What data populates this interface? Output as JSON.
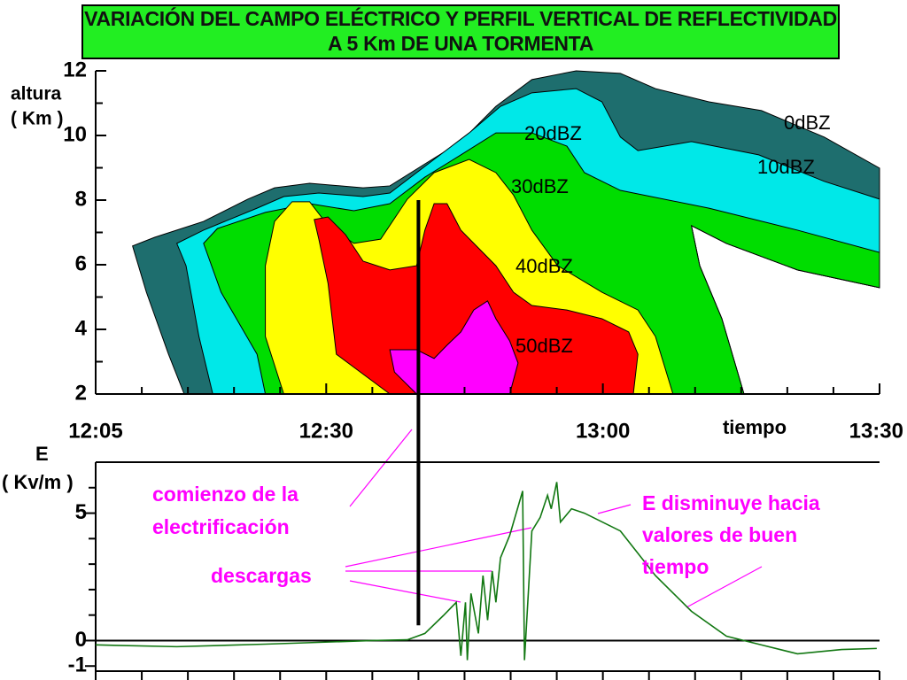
{
  "title": "VARIACIÓN DEL CAMPO ELÉCTRICO Y PERFIL VERTICAL DE REFLECTIVIDAD A 5 Km DE UNA TORMENTA",
  "electrification_start": 40,
  "chart_data": [
    {
      "type": "contour",
      "y_label": [
        "altura",
        "( Km )"
      ],
      "x_label": "tiempo",
      "xlim": [
        5,
        90
      ],
      "xticks": [
        {
          "value": 5,
          "label": "12:05"
        },
        {
          "value": 30,
          "label": "12:30"
        },
        {
          "value": 60,
          "label": "13:00"
        },
        {
          "value": 90,
          "label": "13:30"
        }
      ],
      "minor_xticks": [
        10,
        15,
        20,
        25,
        35,
        40,
        45,
        50,
        55,
        65,
        70,
        75,
        80,
        85
      ],
      "ylim": [
        2,
        12
      ],
      "yticks": [
        2,
        4,
        6,
        8,
        10,
        12
      ],
      "minor_yticks": [
        3,
        5,
        7,
        9,
        11
      ],
      "levels": [
        {
          "name": "0dBZ",
          "color": "#1e6e6e",
          "x": [
            14.6,
            12.9,
            10.5,
            9.0,
            11.4,
            16.7,
            21.5,
            24.4,
            28.2,
            34.0,
            36.9,
            40.7,
            44.6,
            48.4,
            52.3,
            57.1,
            61.9,
            65.7,
            71.5,
            77.2,
            84.0,
            90,
            90,
            81.1,
            73.4,
            69.6,
            70.5,
            72.9,
            75.3
          ],
          "y": [
            2,
            3.23,
            5.15,
            6.58,
            6.85,
            7.34,
            8.03,
            8.38,
            8.52,
            8.38,
            8.44,
            9.12,
            9.81,
            10.9,
            11.73,
            12,
            11.92,
            11.45,
            11.04,
            10.77,
            9.95,
            8.99,
            5.29,
            5.84,
            6.66,
            7.21,
            5.97,
            4.33,
            2
          ]
        },
        {
          "name": "10dBZ",
          "color": "#00e8e8",
          "x": [
            17.7,
            16.2,
            14.8,
            13.8,
            16.7,
            22.5,
            25.4,
            29.2,
            34.0,
            36.9,
            41.7,
            45.5,
            48.9,
            52.3,
            57.1,
            59.9,
            61.9,
            63.8,
            69.6,
            76.9,
            84.0,
            90,
            90,
            81.1,
            73.4,
            69.6,
            70.5,
            72.9,
            75.3
          ],
          "y": [
            2,
            3.78,
            5.97,
            6.66,
            7.07,
            7.75,
            8.11,
            8.22,
            8.11,
            8.22,
            9.26,
            10.08,
            10.9,
            11.32,
            11.45,
            11.04,
            9.95,
            9.53,
            9.81,
            9.4,
            8.58,
            8.03,
            5.29,
            5.84,
            6.66,
            7.21,
            5.97,
            4.33,
            2
          ]
        },
        {
          "name": "20dBZ",
          "color": "#00dd00",
          "x": [
            23.4,
            22.5,
            18.6,
            16.7,
            18.2,
            23.4,
            28.2,
            33.0,
            36.9,
            40.7,
            44.6,
            48.4,
            52.3,
            56.1,
            58.0,
            61.9,
            71.5,
            81.1,
            90,
            90,
            81.1,
            73.4,
            69.6,
            70.5,
            72.9,
            75.3
          ],
          "y": [
            2,
            3.23,
            5.15,
            6.66,
            7.12,
            7.62,
            7.89,
            7.67,
            7.89,
            8.71,
            9.4,
            10.08,
            10.08,
            9.67,
            8.85,
            8.3,
            7.75,
            7.07,
            6.38,
            5.29,
            5.84,
            6.66,
            7.21,
            5.97,
            4.33,
            2
          ]
        },
        {
          "name": "30dBZ",
          "color": "#ffff00",
          "x": [
            25.4,
            23.4,
            23.4,
            24.4,
            26.3,
            28.2,
            30.2,
            33.0,
            35.9,
            38.8,
            41.7,
            45.5,
            48.4,
            50.3,
            52.3,
            55.1,
            59.9,
            63.8,
            65.7,
            67.6
          ],
          "y": [
            2,
            3.78,
            5.97,
            7.34,
            7.95,
            7.95,
            7.21,
            6.66,
            6.79,
            8.03,
            8.85,
            9.26,
            8.85,
            8.16,
            7.07,
            5.97,
            5.15,
            4.6,
            3.78,
            2
          ]
        },
        {
          "name": "40dBZ",
          "color": "#ff0000",
          "x": [
            36.9,
            31.1,
            30.2,
            29.2,
            28.7,
            30.2,
            32.1,
            34.0,
            36.9,
            39.8,
            40.7,
            41.7,
            43.1,
            44.6,
            48.4,
            50.3,
            52.3,
            56.1,
            59.9,
            62.8,
            63.8,
            63.3
          ],
          "y": [
            2,
            3.23,
            5.42,
            6.79,
            7.4,
            7.48,
            6.93,
            6.11,
            5.84,
            5.97,
            7.07,
            7.89,
            7.89,
            7.07,
            5.97,
            5.15,
            4.74,
            4.6,
            4.33,
            3.92,
            3.23,
            2
          ]
        },
        {
          "name": "50dBZ",
          "color": "#ff00ff",
          "x": [
            39.8,
            37.4,
            36.9,
            39.8,
            41.7,
            43.1,
            44.6,
            46.0,
            47.5,
            48.4,
            49.9,
            50.8,
            49.9
          ],
          "y": [
            2,
            2.68,
            3.37,
            3.37,
            3.1,
            3.51,
            3.92,
            4.6,
            4.88,
            4.33,
            3.64,
            2.96,
            2
          ]
        }
      ]
    },
    {
      "type": "line",
      "y_label": [
        "E",
        "( Kv/m )"
      ],
      "xlim": [
        5,
        90
      ],
      "xtick_marks": [
        5,
        10,
        15,
        20,
        25,
        30,
        35,
        40,
        45,
        50,
        55,
        60,
        65,
        70,
        75,
        80,
        85,
        90
      ],
      "ylim": [
        -1.2,
        7
      ],
      "yticks": [
        -1,
        0,
        5
      ],
      "minor_yticks": [
        1,
        2,
        3,
        4,
        6
      ],
      "series": [
        {
          "color": "#117711",
          "x": [
            5,
            13.8,
            23.4,
            35,
            38.8,
            40.7,
            42.7,
            44.1,
            44.6,
            45.1,
            45.3,
            45.7,
            46.5,
            47,
            47.5,
            48,
            48.4,
            48.9,
            49.9,
            51.3,
            51.5,
            52.3,
            53.2,
            54,
            54.4,
            55,
            55.4,
            56.6,
            58,
            61.9,
            65.7,
            69.6,
            73.4,
            77.2,
            81.1,
            85.9,
            89.7
          ],
          "values": [
            -0.17,
            -0.24,
            -0.14,
            0,
            0.03,
            0.28,
            0.98,
            1.5,
            -0.6,
            1.5,
            -0.77,
            1.85,
            0.28,
            2.55,
            0.8,
            2.73,
            1.5,
            3.25,
            4.13,
            5.87,
            -0.77,
            4.3,
            4.83,
            5.7,
            5.17,
            6.22,
            4.65,
            5.17,
            5.0,
            4.3,
            2.55,
            1.15,
            0.17,
            -0.17,
            -0.52,
            -0.35,
            -0.31
          ]
        }
      ],
      "annotations": [
        [
          "comienzo de la",
          "electrificación"
        ],
        [
          "descargas"
        ],
        [
          "E disminuye hacia",
          "valores de buen",
          "tiempo"
        ]
      ]
    }
  ]
}
